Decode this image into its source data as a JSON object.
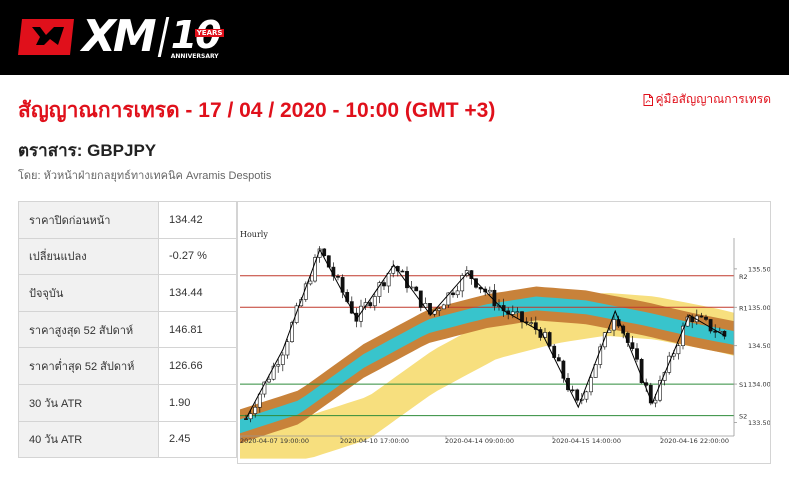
{
  "brand": {
    "name": "XM",
    "anniversary_number": "10",
    "anniversary_years": "YEARS",
    "anniversary_word": "ANNIVERSARY"
  },
  "header": {
    "title": "สัญญาณการเทรด - 17 / 04 / 2020 - 10:00 (GMT +3)",
    "guide_link": "คู่มือสัญญาณการเทรด"
  },
  "instrument": {
    "label": "ตราสาร: GBPJPY"
  },
  "author": {
    "text": "โดย: หัวหน้าฝ่ายกลยุทธ์ทางเทคนิค Avramis Despotis"
  },
  "stats": [
    {
      "label": "ราคาปิดก่อนหน้า",
      "value": "134.42"
    },
    {
      "label": "เปลี่ยนแปลง",
      "value": "-0.27 %"
    },
    {
      "label": "ปัจจุบัน",
      "value": "134.44"
    },
    {
      "label": "ราคาสูงสุด 52 สัปดาห์",
      "value": "146.81"
    },
    {
      "label": "ราคาต่ำสุด 52 สัปดาห์",
      "value": "126.66"
    },
    {
      "label": "30 วัน ATR",
      "value": "1.90"
    },
    {
      "label": "40 วัน ATR",
      "value": "2.45"
    }
  ],
  "colors": {
    "accent": "#e0101b",
    "band_outer": "#c8823a",
    "band_mid": "#f7df7e",
    "band_inner": "#38c4cc",
    "resistance": "#c0392b",
    "support": "#2e8b3a"
  },
  "chart_data": {
    "type": "candlestick",
    "timeframe_label": "Hourly",
    "ylim": [
      133.35,
      135.85
    ],
    "y_ticks": [
      "135.50",
      "135.00",
      "134.50",
      "134.00",
      "133.50"
    ],
    "x_ticks": [
      "2020-04-07 19:00:00",
      "2020-04-10 17:00:00",
      "2020-04-14 09:00:00",
      "2020-04-15 14:00:00",
      "2020-04-16 22:00:00"
    ],
    "levels": [
      {
        "name": "R2",
        "value": 135.41
      },
      {
        "name": "R1",
        "value": 135.0
      },
      {
        "name": "S1",
        "value": 134.0
      },
      {
        "name": "S2",
        "value": 133.59
      }
    ],
    "zigzag": [
      133.55,
      134.45,
      135.75,
      134.85,
      135.55,
      134.9,
      135.45,
      134.95,
      134.68,
      133.7,
      134.95,
      133.75,
      134.9,
      134.62
    ]
  }
}
